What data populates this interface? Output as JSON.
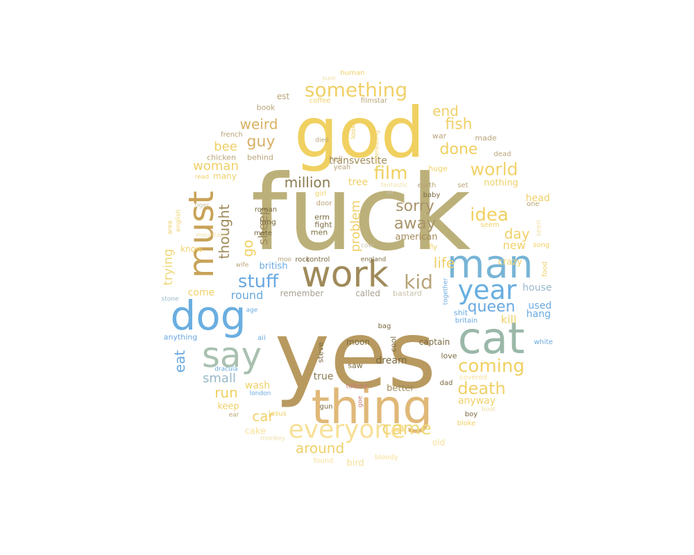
{
  "words": [
    {
      "text": "fuck",
      "color": "#bcb07a"
    },
    {
      "text": "yes",
      "color": "#b89a60"
    },
    {
      "text": "god",
      "color": "#f0d060"
    },
    {
      "text": "thing",
      "color": "#e0b878"
    },
    {
      "text": "cat",
      "color": "#9ab8a8"
    },
    {
      "text": "man",
      "color": "#78b4d6"
    },
    {
      "text": "dog",
      "color": "#6aaee0"
    },
    {
      "text": "work",
      "color": "#a08a5a"
    },
    {
      "text": "must",
      "color": "#c8a258"
    },
    {
      "text": "say",
      "color": "#a8c0b0"
    },
    {
      "text": "everyone",
      "color": "#f8e098"
    },
    {
      "text": "year",
      "color": "#68aee0"
    },
    {
      "text": "something",
      "color": "#f0d068"
    },
    {
      "text": "kid",
      "color": "#b8a478"
    },
    {
      "text": "film",
      "color": "#f0d060"
    },
    {
      "text": "world",
      "color": "#f2d26a"
    },
    {
      "text": "idea",
      "color": "#f0d060"
    },
    {
      "text": "coming",
      "color": "#f0d060"
    },
    {
      "text": "death",
      "color": "#f0d068"
    },
    {
      "text": "came",
      "color": "#f0d878"
    },
    {
      "text": "stuff",
      "color": "#68a8e0"
    },
    {
      "text": "queen",
      "color": "#68a8e0"
    },
    {
      "text": "away",
      "color": "#a8946a"
    },
    {
      "text": "sorry",
      "color": "#a8946a"
    },
    {
      "text": "million",
      "color": "#8a7a50"
    },
    {
      "text": "weird",
      "color": "#d8b060"
    },
    {
      "text": "guy",
      "color": "#d8b068"
    },
    {
      "text": "done",
      "color": "#f0d060"
    },
    {
      "text": "fish",
      "color": "#f0d068"
    },
    {
      "text": "end",
      "color": "#f0d068"
    },
    {
      "text": "life",
      "color": "#f0d068"
    },
    {
      "text": "day",
      "color": "#f0d068"
    },
    {
      "text": "run",
      "color": "#f0d060"
    },
    {
      "text": "around",
      "color": "#f0d068"
    },
    {
      "text": "car",
      "color": "#f0d068"
    },
    {
      "text": "bee",
      "color": "#f0d068"
    },
    {
      "text": "woman",
      "color": "#f0d068"
    },
    {
      "text": "trying",
      "color": "#f0d878"
    },
    {
      "text": "eat",
      "color": "#68a8e0"
    },
    {
      "text": "small",
      "color": "#98b8c8"
    },
    {
      "text": "thought",
      "color": "#a08a5a"
    },
    {
      "text": "go",
      "color": "#f0d060"
    },
    {
      "text": "sheep",
      "color": "#a08a5a"
    },
    {
      "text": "problem",
      "color": "#f0d068"
    },
    {
      "text": "round",
      "color": "#68a8e0"
    },
    {
      "text": "come",
      "color": "#f0d068"
    },
    {
      "text": "dream",
      "color": "#7a6a40"
    },
    {
      "text": "true",
      "color": "#8a7a50"
    },
    {
      "text": "anyway",
      "color": "#f0d068"
    },
    {
      "text": "new",
      "color": "#f0d068"
    },
    {
      "text": "kill",
      "color": "#f0d068"
    },
    {
      "text": "used",
      "color": "#68a8e0"
    },
    {
      "text": "hang",
      "color": "#68a8e0"
    },
    {
      "text": "head",
      "color": "#f0d068"
    },
    {
      "text": "house",
      "color": "#98b8c8"
    },
    {
      "text": "crazy",
      "color": "#f0d068"
    },
    {
      "text": "tree",
      "color": "#f0d068"
    },
    {
      "text": "transvestite",
      "color": "#a08a5a"
    },
    {
      "text": "nothing",
      "color": "#f0d068"
    },
    {
      "text": "american",
      "color": "#a08a5a"
    },
    {
      "text": "british",
      "color": "#68a8e0"
    },
    {
      "text": "called",
      "color": "#a8a090"
    },
    {
      "text": "remember",
      "color": "#a8a090"
    },
    {
      "text": "bastard",
      "color": "#c8c0a8"
    },
    {
      "text": "wash",
      "color": "#f0d068"
    },
    {
      "text": "keep",
      "color": "#f0d068"
    },
    {
      "text": "cake",
      "color": "#f8e098"
    },
    {
      "text": "bird",
      "color": "#f8e098"
    },
    {
      "text": "old",
      "color": "#f8e098"
    },
    {
      "text": "better",
      "color": "#a08a5a"
    },
    {
      "text": "moon",
      "color": "#7a6a40"
    },
    {
      "text": "captain",
      "color": "#7a6a40"
    },
    {
      "text": "saw",
      "color": "#7a6a40"
    },
    {
      "text": "love",
      "color": "#7a6a40"
    },
    {
      "text": "steve",
      "color": "#7a6a40"
    },
    {
      "text": "cool",
      "color": "#7a6a40"
    },
    {
      "text": "bag",
      "color": "#7a6a40"
    },
    {
      "text": "long",
      "color": "#7a6a40"
    },
    {
      "text": "erm",
      "color": "#7a6a40"
    },
    {
      "text": "fight",
      "color": "#7a6a40"
    },
    {
      "text": "men",
      "color": "#7a6a40"
    },
    {
      "text": "mate",
      "color": "#7a6a40"
    },
    {
      "text": "roman",
      "color": "#7a6a40"
    },
    {
      "text": "control",
      "color": "#7a6a40"
    },
    {
      "text": "england",
      "color": "#7a6a40"
    },
    {
      "text": "rock",
      "color": "#7a6a40"
    },
    {
      "text": "know",
      "color": "#f0d068"
    },
    {
      "text": "many",
      "color": "#f0d068"
    },
    {
      "text": "chicken",
      "color": "#b8a478"
    },
    {
      "text": "behind",
      "color": "#b8a478"
    },
    {
      "text": "book",
      "color": "#b8a478"
    },
    {
      "text": "est",
      "color": "#b8a478"
    },
    {
      "text": "french",
      "color": "#b8a478"
    },
    {
      "text": "coffee",
      "color": "#f0d068"
    },
    {
      "text": "filmstar",
      "color": "#b8a478"
    },
    {
      "text": "hell",
      "color": "#b8a478"
    },
    {
      "text": "yeah",
      "color": "#b8a478"
    },
    {
      "text": "look",
      "color": "#f0d068"
    },
    {
      "text": "war",
      "color": "#b8a478"
    },
    {
      "text": "made",
      "color": "#b8a478"
    },
    {
      "text": "dead",
      "color": "#b8a478"
    },
    {
      "text": "huge",
      "color": "#f0d068"
    },
    {
      "text": "earth",
      "color": "#b8a478"
    },
    {
      "text": "set",
      "color": "#b8a478"
    },
    {
      "text": "baby",
      "color": "#7a6a40"
    },
    {
      "text": "fantastic",
      "color": "#f0e0a8"
    },
    {
      "text": "sir",
      "color": "#c8c0a8"
    },
    {
      "text": "girl",
      "color": "#f0d068"
    },
    {
      "text": "door",
      "color": "#b8a478"
    },
    {
      "text": "one",
      "color": "#b8a478"
    },
    {
      "text": "seem",
      "color": "#f0d068"
    },
    {
      "text": "song",
      "color": "#f0d068"
    },
    {
      "text": "fly",
      "color": "#f0d068"
    },
    {
      "text": "seen",
      "color": "#f0e0a8"
    },
    {
      "text": "food",
      "color": "#f0d068"
    },
    {
      "text": "together",
      "color": "#68a8e0"
    },
    {
      "text": "shit",
      "color": "#68a8e0"
    },
    {
      "text": "britain",
      "color": "#68a8e0"
    },
    {
      "text": "white",
      "color": "#68a8e0"
    },
    {
      "text": "covered",
      "color": "#f8e098"
    },
    {
      "text": "dad",
      "color": "#7a6a40"
    },
    {
      "text": "boy",
      "color": "#7a6a40"
    },
    {
      "text": "boat",
      "color": "#f0e0a8"
    },
    {
      "text": "bloke",
      "color": "#f0d068"
    },
    {
      "text": "gun",
      "color": "#7a6a40"
    },
    {
      "text": "jesus",
      "color": "#f0d068"
    },
    {
      "text": "london",
      "color": "#68a8e0"
    },
    {
      "text": "ear",
      "color": "#b8a478"
    },
    {
      "text": "monkey",
      "color": "#f0e0a8"
    },
    {
      "text": "found",
      "color": "#f8e098"
    },
    {
      "text": "bloody",
      "color": "#f8e098"
    },
    {
      "text": "talking",
      "color": "#c87a7a"
    },
    {
      "text": "goe",
      "color": "#c87a7a"
    },
    {
      "text": "dracula",
      "color": "#68a8e0"
    },
    {
      "text": "aii",
      "color": "#68a8e0"
    },
    {
      "text": "anything",
      "color": "#68a8e0"
    },
    {
      "text": "age",
      "color": "#68a8e0"
    },
    {
      "text": "stone",
      "color": "#98b8c8"
    },
    {
      "text": "wife",
      "color": "#b8a478"
    },
    {
      "text": "cow",
      "color": "#c8c0a8"
    },
    {
      "text": "moo",
      "color": "#b8a478"
    },
    {
      "text": "mountain",
      "color": "#f0e0a8"
    },
    {
      "text": "english",
      "color": "#f0d068"
    },
    {
      "text": "area",
      "color": "#f0d068"
    },
    {
      "text": "tiger",
      "color": "#c8c0a8"
    },
    {
      "text": "read",
      "color": "#f0d068"
    },
    {
      "text": "died",
      "color": "#b8a478"
    },
    {
      "text": "interesting",
      "color": "#f0d068"
    },
    {
      "text": "sure",
      "color": "#f0e0a8"
    },
    {
      "text": "human",
      "color": "#f0d068"
    }
  ]
}
